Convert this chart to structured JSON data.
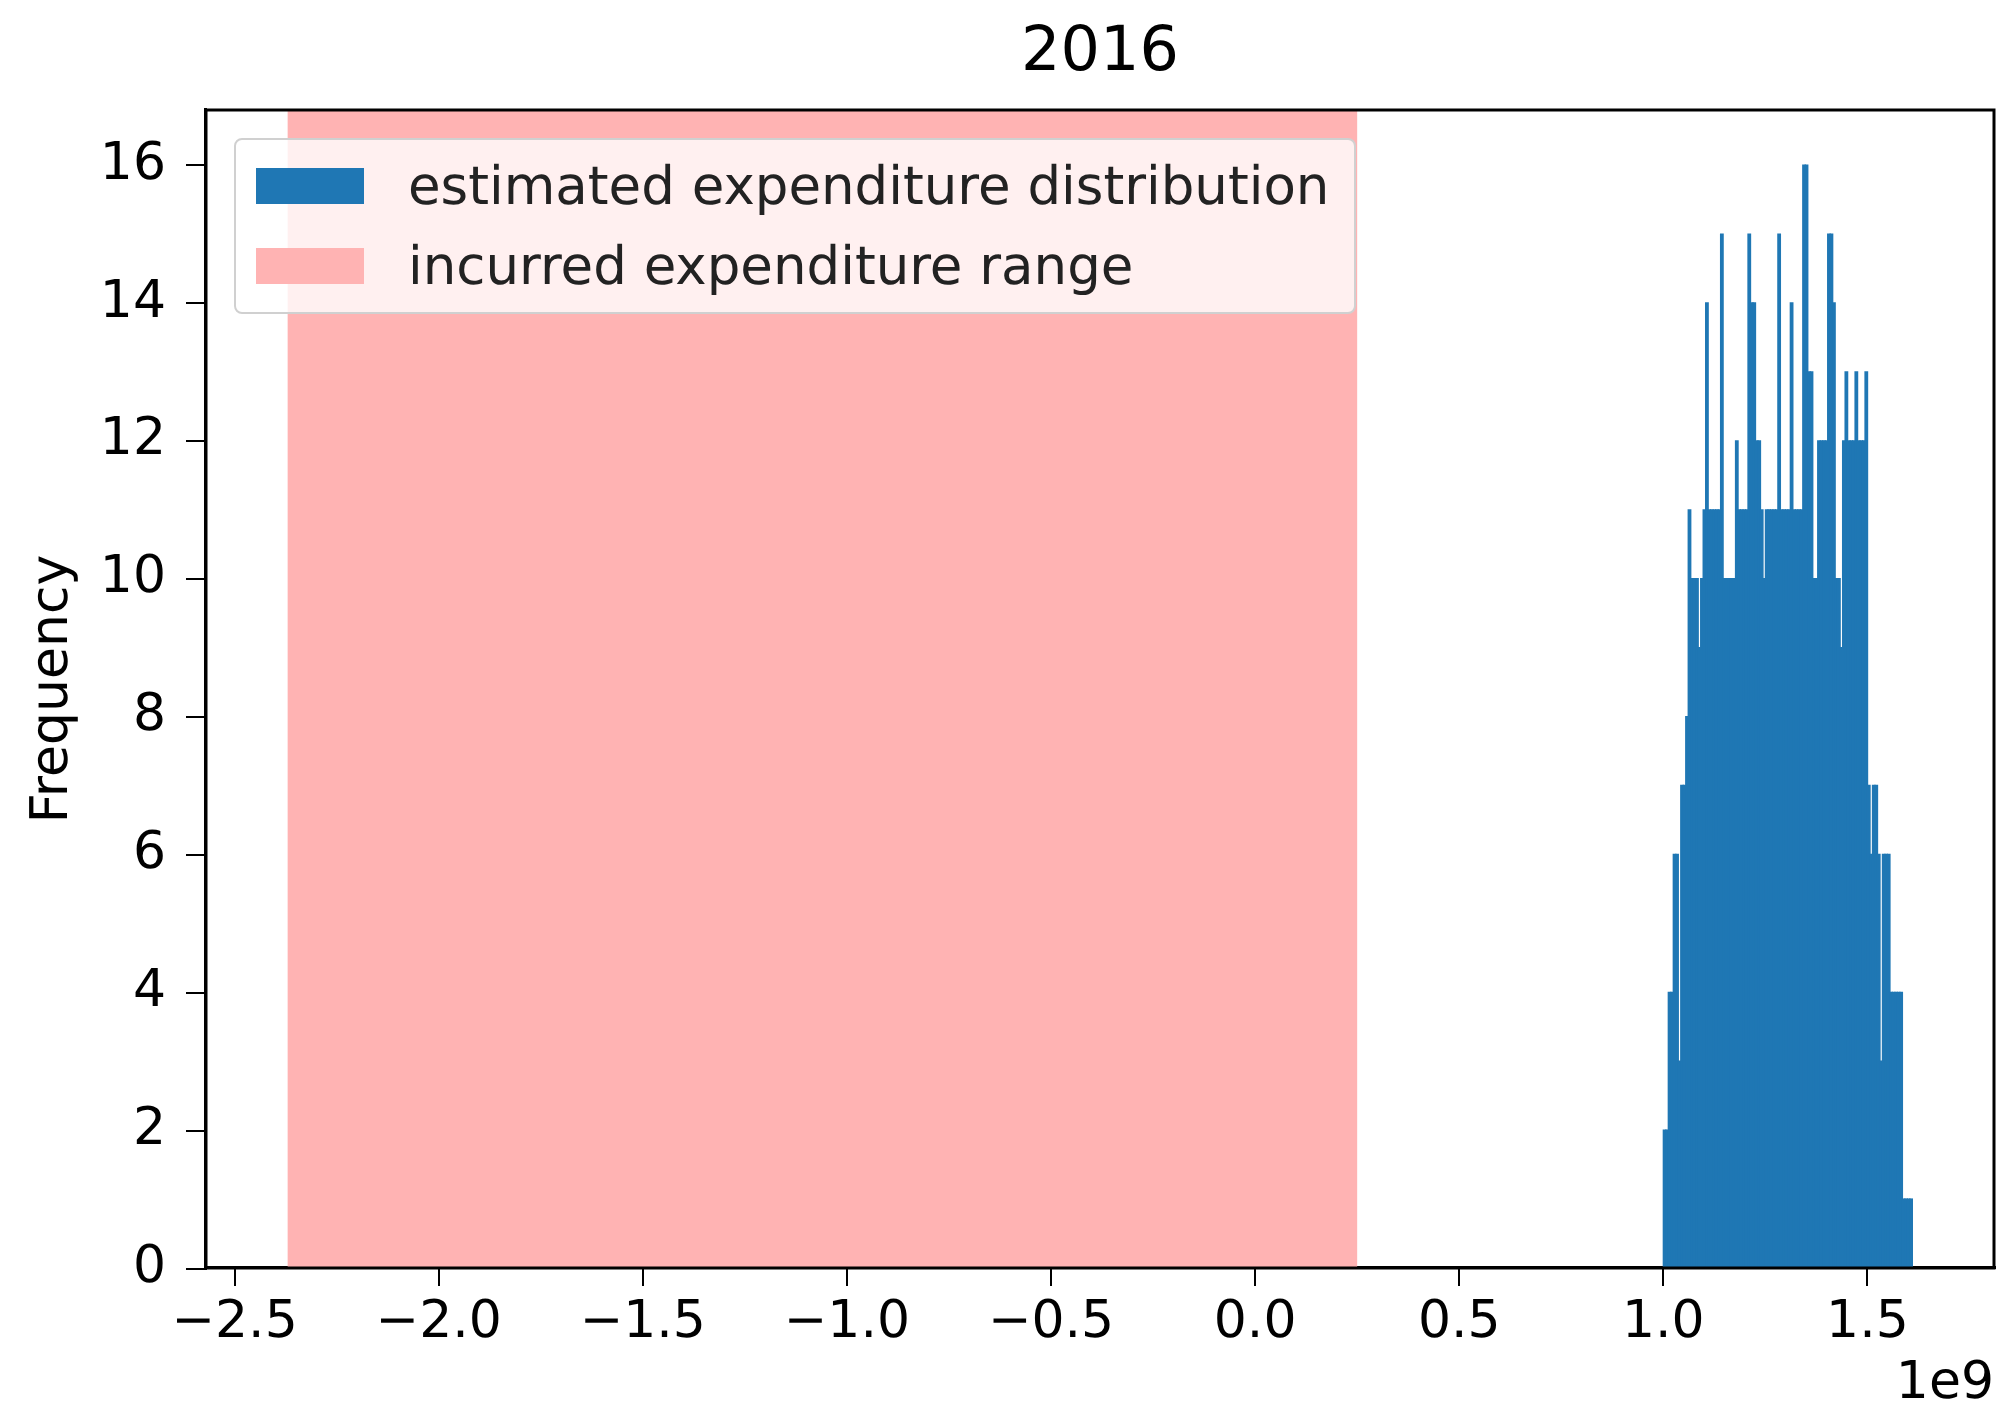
{
  "chart_data": {
    "type": "histogram",
    "title": "2016",
    "ylabel": "Frequency",
    "annotations": [
      "1e9"
    ],
    "bins": [
      1,
      1.0061,
      1.0122,
      1.0183,
      1.0244,
      1.0305,
      1.0366,
      1.0427,
      1.0488,
      1.0549,
      1.061,
      1.0671,
      1.0732,
      1.0793,
      1.0854,
      1.0915,
      1.0976,
      1.1037,
      1.1098,
      1.1159,
      1.122,
      1.1281,
      1.1342,
      1.1403,
      1.1464,
      1.1525,
      1.1586,
      1.1647,
      1.1708,
      1.1769,
      1.183,
      1.1891,
      1.1952,
      1.2013,
      1.2074,
      1.2135,
      1.2196,
      1.2257,
      1.2318,
      1.2379,
      1.244,
      1.2501,
      1.2562,
      1.2623,
      1.2684,
      1.2745,
      1.2806,
      1.2867,
      1.2928,
      1.2989,
      1.305,
      1.3111,
      1.3172,
      1.3233,
      1.3294,
      1.3355,
      1.3416,
      1.3477,
      1.3538,
      1.3599,
      1.366,
      1.3721,
      1.3782,
      1.3843,
      1.3904,
      1.3965,
      1.4026,
      1.4087,
      1.4148,
      1.4209,
      1.427,
      1.4331,
      1.4392,
      1.4453,
      1.4514,
      1.4575,
      1.4636,
      1.4697,
      1.4758,
      1.4819,
      1.488,
      1.4941,
      1.5002,
      1.5063,
      1.5124,
      1.5185,
      1.5246,
      1.5307,
      1.5368,
      1.5429,
      1.549,
      1.5551,
      1.5612,
      1.5673,
      1.5734,
      1.5795,
      1.5856,
      1.5917,
      1.5978,
      1.6039,
      1.61
    ],
    "series": [
      {
        "name": "estimated expenditure distribution",
        "color": "#1f77b4",
        "values": [
          2,
          2,
          4,
          4,
          6,
          6,
          3,
          7,
          7,
          8,
          11,
          10,
          10,
          10,
          9,
          10,
          11,
          14,
          11,
          11,
          11,
          11,
          11,
          15,
          10,
          10,
          10,
          10,
          10,
          12,
          11,
          11,
          11,
          11,
          15,
          14,
          14,
          12,
          12,
          11,
          10,
          11,
          11,
          11,
          11,
          11,
          15,
          11,
          11,
          11,
          11,
          14,
          11,
          11,
          11,
          11,
          16,
          16,
          13,
          13,
          10,
          10,
          12,
          12,
          12,
          12,
          15,
          15,
          14,
          10,
          10,
          9,
          12,
          13,
          12,
          12,
          12,
          13,
          12,
          12,
          12,
          13,
          7,
          6,
          7,
          7,
          6,
          3,
          6,
          6,
          6,
          4,
          4,
          4,
          4,
          4,
          1,
          1,
          1,
          1
        ]
      }
    ],
    "bands": [
      {
        "axis": "x",
        "from": -2.37,
        "to": 0.25,
        "label": "incurred expenditure range",
        "color": "#ffb3b3"
      }
    ],
    "xlim": [
      -2.57,
      1.81
    ],
    "xticks": [
      {
        "value": -2.5,
        "label": "−2.5"
      },
      {
        "value": -2,
        "label": "−2.0"
      },
      {
        "value": -1.5,
        "label": "−1.5"
      },
      {
        "value": -1,
        "label": "−1.0"
      },
      {
        "value": -0.5,
        "label": "−0.5"
      },
      {
        "value": 0,
        "label": "0.0"
      },
      {
        "value": 0.5,
        "label": "0.5"
      },
      {
        "value": 1,
        "label": "1.0"
      },
      {
        "value": 1.5,
        "label": "1.5"
      }
    ],
    "ylim": [
      0,
      16.8
    ],
    "yticks": [
      0,
      2,
      4,
      6,
      8,
      10,
      12,
      14,
      16
    ],
    "legend": "top left"
  }
}
